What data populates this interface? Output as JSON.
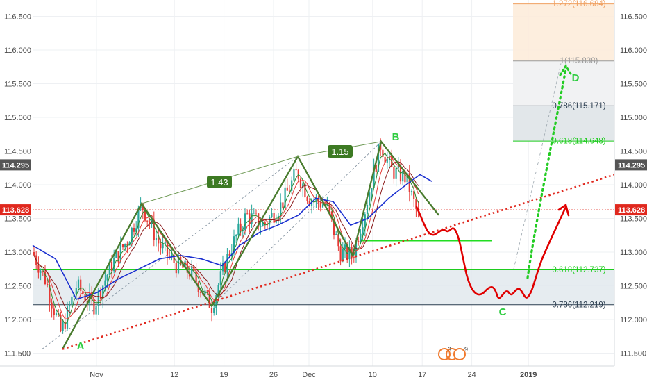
{
  "chart_data": {
    "type": "candlestick",
    "instrument_note": "",
    "y_axis": {
      "ticks": [
        "111.500",
        "112.000",
        "112.500",
        "113.000",
        "113.500",
        "114.000",
        "114.500",
        "115.000",
        "115.500",
        "116.000",
        "116.500"
      ],
      "ylim": [
        111.4,
        116.75
      ]
    },
    "x_axis": {
      "labels": [
        "Nov",
        "12",
        "19",
        "26",
        "Dec",
        "10",
        "17",
        "24",
        "2019"
      ]
    },
    "price_tags": [
      {
        "value": "114.295",
        "color": "#555555"
      },
      {
        "value": "113.628",
        "color": "#e0281e"
      }
    ],
    "harmonic_points": [
      {
        "label": "A",
        "value": 111.56
      },
      {
        "label": "B",
        "value": 114.64
      },
      {
        "label": "C",
        "value": 112.27
      },
      {
        "label": "D",
        "value": 115.72
      }
    ],
    "ratio_labels": [
      "1.43",
      "1.15"
    ],
    "fib_levels": [
      {
        "text": "1.272(116.684)",
        "value": 116.684,
        "color": "#f0a060"
      },
      {
        "text": "1(115.838)",
        "value": 115.838,
        "color": "#9a9a9a"
      },
      {
        "text": "0.786(115.171)",
        "value": 115.171,
        "color": "#2c3e50"
      },
      {
        "text": "0.618(114.648)",
        "value": 114.648,
        "color": "#1ecc1e"
      },
      {
        "text": "0.618(112.737)",
        "value": 112.737,
        "color": "#1ecc1e"
      },
      {
        "text": "0.786(112.219)",
        "value": 112.219,
        "color": "#2c3e50"
      }
    ],
    "horizontal_lines": [
      {
        "value": 113.628,
        "style": "dotted",
        "color": "#e0281e"
      },
      {
        "value": 113.17,
        "style": "solid",
        "color": "#22dd22"
      }
    ],
    "colors": {
      "up": "#26a69a",
      "down": "#e53935",
      "pattern": "#4a7c2f",
      "projection": "#e00000",
      "target": "#22cc22",
      "ma_blue": "#1a2fd0"
    },
    "grid": true,
    "event_badge": {
      "count": "3",
      "extra": "9"
    }
  }
}
